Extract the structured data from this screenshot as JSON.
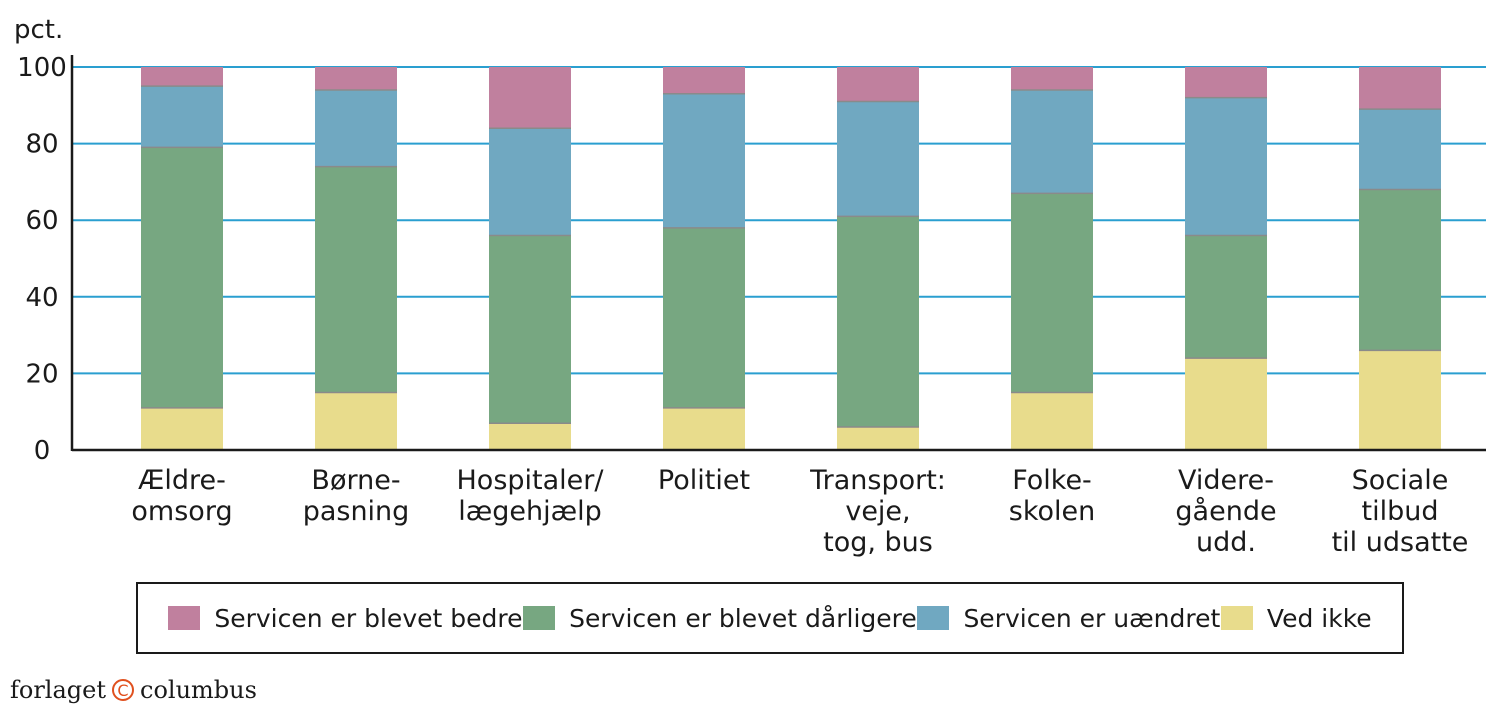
{
  "chart_data": {
    "type": "bar",
    "stacked": true,
    "ylabel": "pct.",
    "ylim": [
      0,
      100
    ],
    "yticks": [
      0,
      20,
      40,
      60,
      80,
      100
    ],
    "grid": true,
    "categories": [
      [
        "Ældre-",
        "omsorg"
      ],
      [
        "Børne-",
        "pasning"
      ],
      [
        "Hospitaler/",
        "lægehjælp"
      ],
      [
        "Politiet"
      ],
      [
        "Transport:",
        "veje,",
        "tog, bus"
      ],
      [
        "Folke-",
        "skolen"
      ],
      [
        "Videre-",
        "gående",
        "udd."
      ],
      [
        "Sociale",
        "tilbud",
        "til udsatte"
      ]
    ],
    "series": [
      {
        "name": "Ved ikke",
        "color": "#e8dc8c",
        "values": [
          11,
          15,
          7,
          11,
          6,
          15,
          24,
          26
        ]
      },
      {
        "name": "Servicen er blevet dårligere",
        "color": "#77a781",
        "values": [
          68,
          59,
          49,
          47,
          55,
          52,
          32,
          42
        ]
      },
      {
        "name": "Servicen er uændret",
        "color": "#70a8c1",
        "values": [
          16,
          20,
          28,
          35,
          30,
          27,
          36,
          21
        ]
      },
      {
        "name": "Servicen er blevet bedre",
        "color": "#c0809e",
        "values": [
          5,
          6,
          16,
          7,
          9,
          6,
          8,
          11
        ]
      }
    ],
    "legend": [
      {
        "label": "Servicen er blevet bedre",
        "color": "#c0809e"
      },
      {
        "label": "Servicen er blevet dårligere",
        "color": "#77a781"
      },
      {
        "label": "Servicen er uændret",
        "color": "#70a8c1"
      },
      {
        "label": "Ved ikke",
        "color": "#e8dc8c"
      }
    ],
    "legend_position": "bottom",
    "grid_color": "#2a9fd0"
  },
  "publisher": {
    "left": "forlaget",
    "logo": "C",
    "right": "columbus"
  }
}
